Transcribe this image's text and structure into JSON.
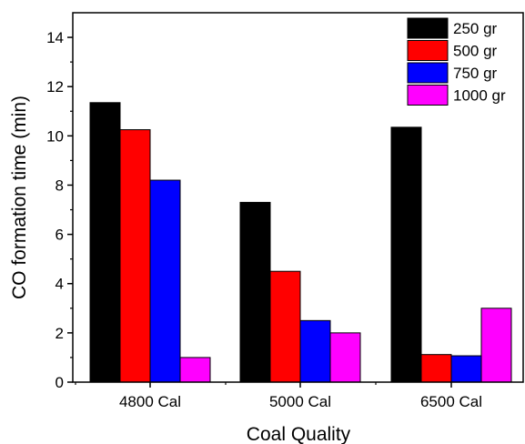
{
  "chart_data": {
    "type": "bar",
    "title": "",
    "xlabel": "Coal Quality",
    "ylabel": "CO formation time (min)",
    "categories": [
      "4800 Cal",
      "5000 Cal",
      "6500 Cal"
    ],
    "ylim": [
      0,
      15
    ],
    "yticks": [
      "0",
      "2",
      "4",
      "6",
      "8",
      "10",
      "12",
      "14"
    ],
    "grid": false,
    "legend_position": "top-right",
    "series": [
      {
        "name": "250 gr",
        "color": "#000000",
        "values": [
          11.35,
          7.3,
          10.35
        ]
      },
      {
        "name": "500 gr",
        "color": "#ff0000",
        "values": [
          10.25,
          4.5,
          1.12
        ]
      },
      {
        "name": "750 gr",
        "color": "#0000ff",
        "values": [
          8.2,
          2.5,
          1.07
        ]
      },
      {
        "name": "1000 gr",
        "color": "#ff00ff",
        "values": [
          1.0,
          2.0,
          3.0
        ]
      }
    ]
  }
}
